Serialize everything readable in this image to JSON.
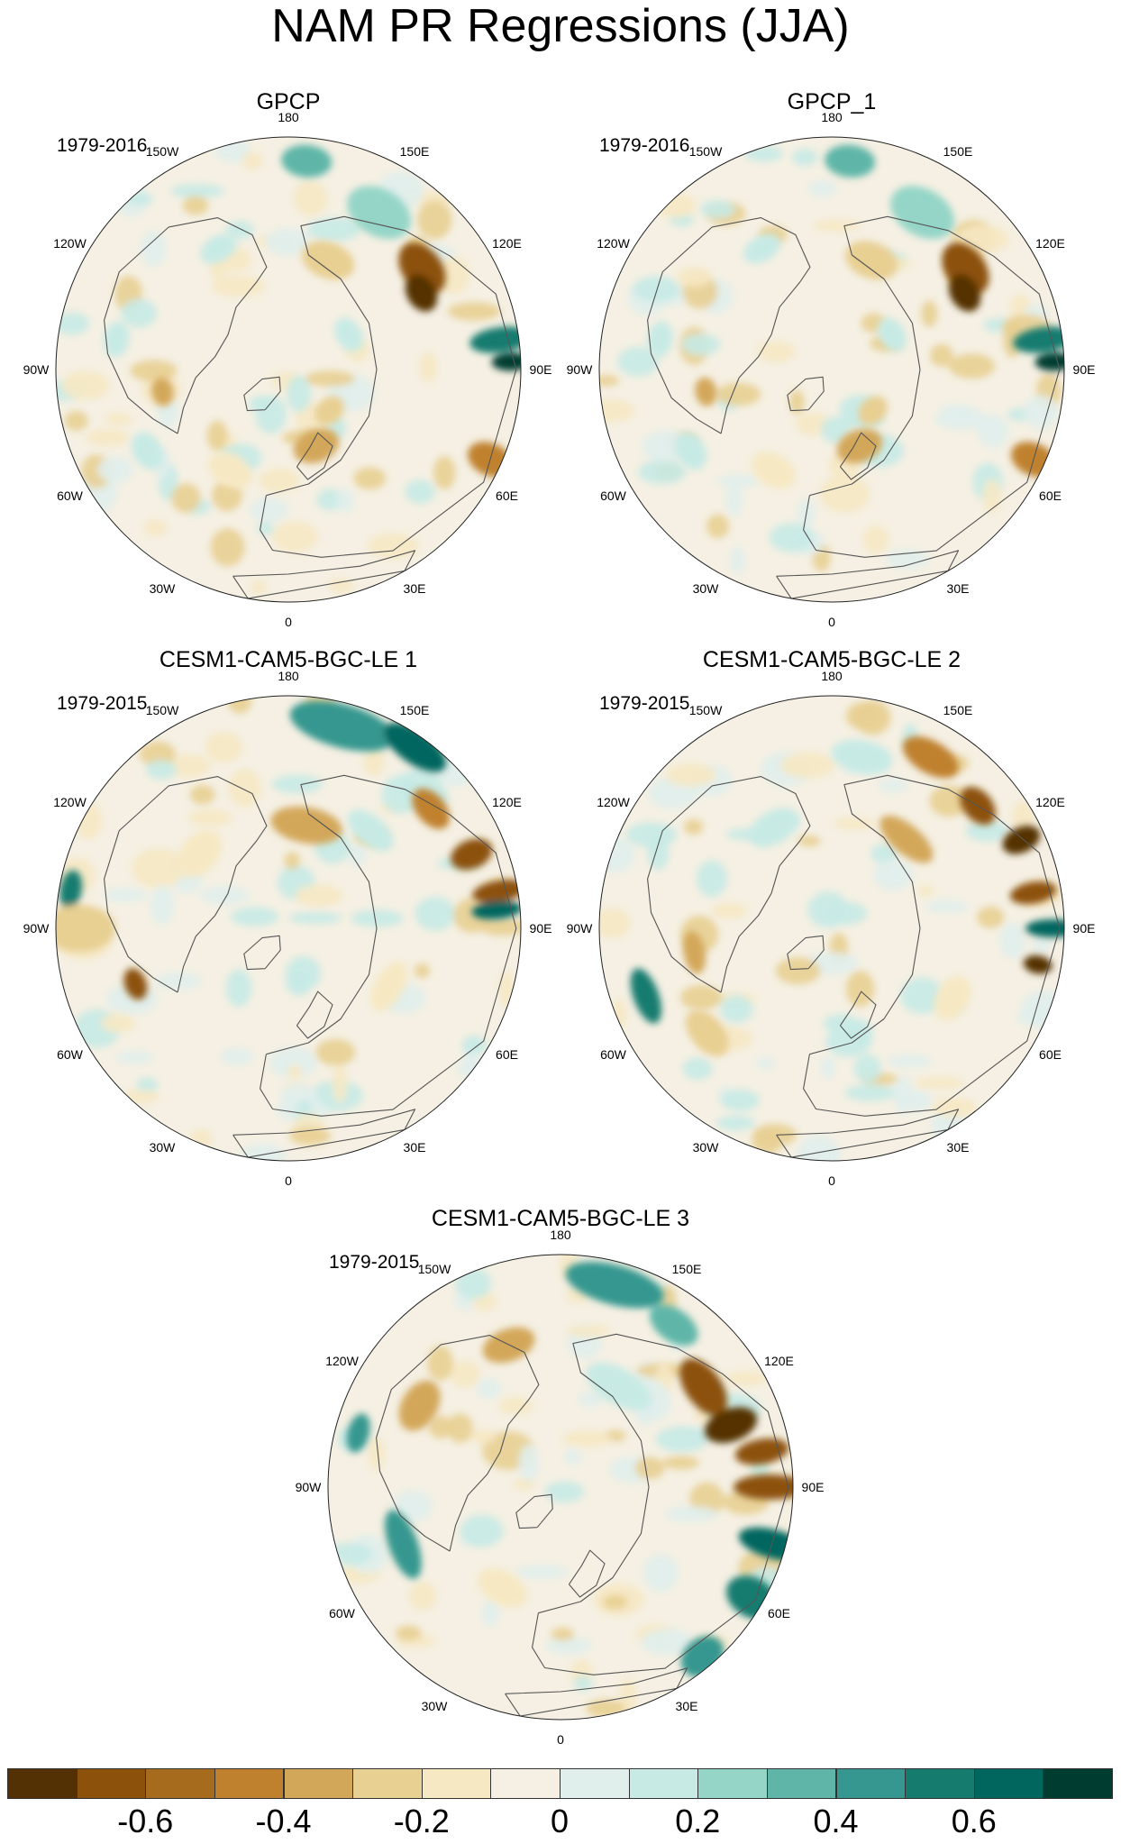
{
  "title": "NAM PR Regressions (JJA)",
  "colorbar": {
    "colors": [
      "#543005",
      "#8c510a",
      "#a76b1d",
      "#bf812d",
      "#d3a75a",
      "#e8cf92",
      "#f6e8c3",
      "#f5f0e3",
      "#e0eeec",
      "#c7eae5",
      "#94d5c7",
      "#5fb6a8",
      "#35978f",
      "#157b6f",
      "#01665e",
      "#003c30"
    ],
    "labels": [
      "-0.6",
      "-0.4",
      "-0.2",
      "0",
      "0.2",
      "0.4",
      "0.6"
    ]
  },
  "lon_labels": [
    "180",
    "150E",
    "120E",
    "90E",
    "60E",
    "30E",
    "0",
    "30W",
    "60W",
    "90W",
    "120W",
    "150W"
  ],
  "panels": [
    {
      "name": "GPCP",
      "years": "1979-2016"
    },
    {
      "name": "GPCP_1",
      "years": "1979-2016"
    },
    {
      "name": "CESM1-CAM5-BGC-LE 1",
      "years": "1979-2015"
    },
    {
      "name": "CESM1-CAM5-BGC-LE 2",
      "years": "1979-2015"
    },
    {
      "name": "CESM1-CAM5-BGC-LE 3",
      "years": "1979-2015"
    }
  ]
}
